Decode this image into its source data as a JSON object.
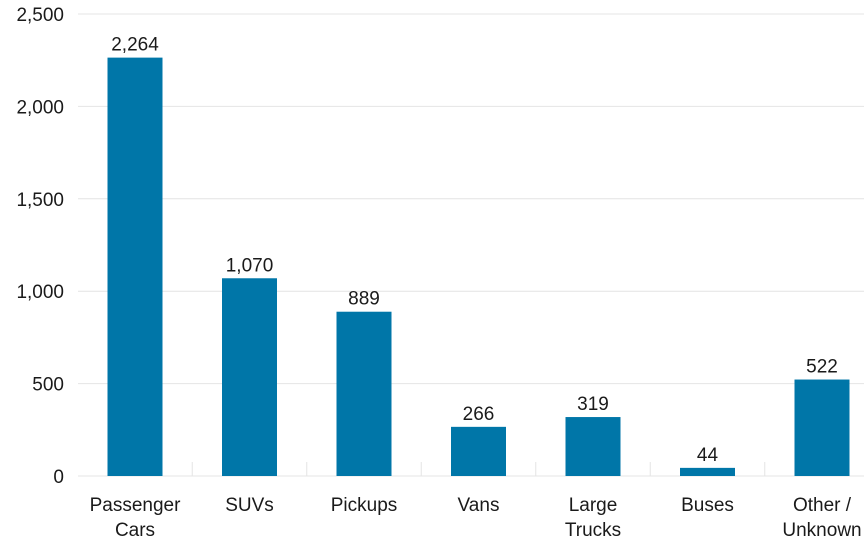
{
  "chart_data": {
    "type": "bar",
    "title": "",
    "xlabel": "",
    "ylabel": "",
    "categories": [
      "Passenger Cars",
      "SUVs",
      "Pickups",
      "Vans",
      "Large Trucks",
      "Buses",
      "Other / Unknown"
    ],
    "category_lines": [
      [
        "Passenger",
        "Cars"
      ],
      [
        "SUVs"
      ],
      [
        "Pickups"
      ],
      [
        "Vans"
      ],
      [
        "Large",
        "Trucks"
      ],
      [
        "Buses"
      ],
      [
        "Other /",
        "Unknown"
      ]
    ],
    "values": [
      2264,
      1070,
      889,
      266,
      319,
      44,
      522
    ],
    "value_labels": [
      "2,264",
      "1,070",
      "889",
      "266",
      "319",
      "44",
      "522"
    ],
    "ylim": [
      0,
      2500
    ],
    "yticks": [
      0,
      500,
      1000,
      1500,
      2000,
      2500
    ],
    "ytick_labels": [
      "0",
      "500",
      "1,000",
      "1,500",
      "2,000",
      "2,500"
    ],
    "grid": true,
    "legend": "none",
    "bar_color": "#0076a8",
    "grid_color": "#e4e4e4"
  }
}
